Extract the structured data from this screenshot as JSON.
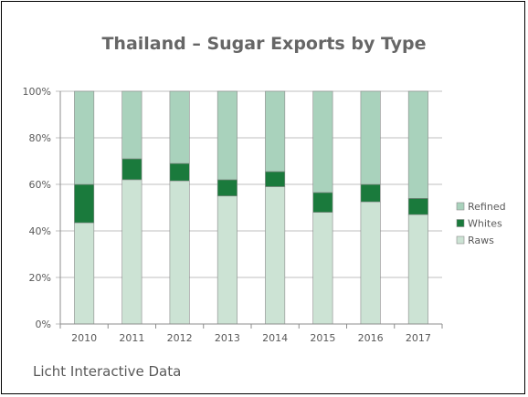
{
  "chart_data": {
    "type": "bar",
    "stacked": true,
    "percent": true,
    "title": "Thailand – Sugar Exports by Type",
    "categories": [
      "2010",
      "2011",
      "2012",
      "2013",
      "2014",
      "2015",
      "2016",
      "2017"
    ],
    "series": [
      {
        "name": "Raws",
        "values": [
          43.5,
          62,
          61.5,
          55,
          59,
          48,
          52.5,
          47
        ],
        "color": "#cce3d4"
      },
      {
        "name": "Whites",
        "values": [
          16.5,
          9,
          7.5,
          7,
          6.5,
          8.5,
          7.5,
          7
        ],
        "color": "#1a7a3c"
      },
      {
        "name": "Refined",
        "values": [
          40,
          29,
          31,
          38,
          34.5,
          43.5,
          40,
          46
        ],
        "color": "#a9d2bc"
      }
    ],
    "y_ticks": [
      "0%",
      "20%",
      "40%",
      "60%",
      "80%",
      "100%"
    ],
    "ylim": [
      0,
      100
    ],
    "xlabel": "",
    "ylabel": "",
    "legend": {
      "position": "right",
      "order": [
        "Refined",
        "Whites",
        "Raws"
      ]
    },
    "grid": true
  },
  "footer": {
    "source": "Licht Interactive Data"
  }
}
